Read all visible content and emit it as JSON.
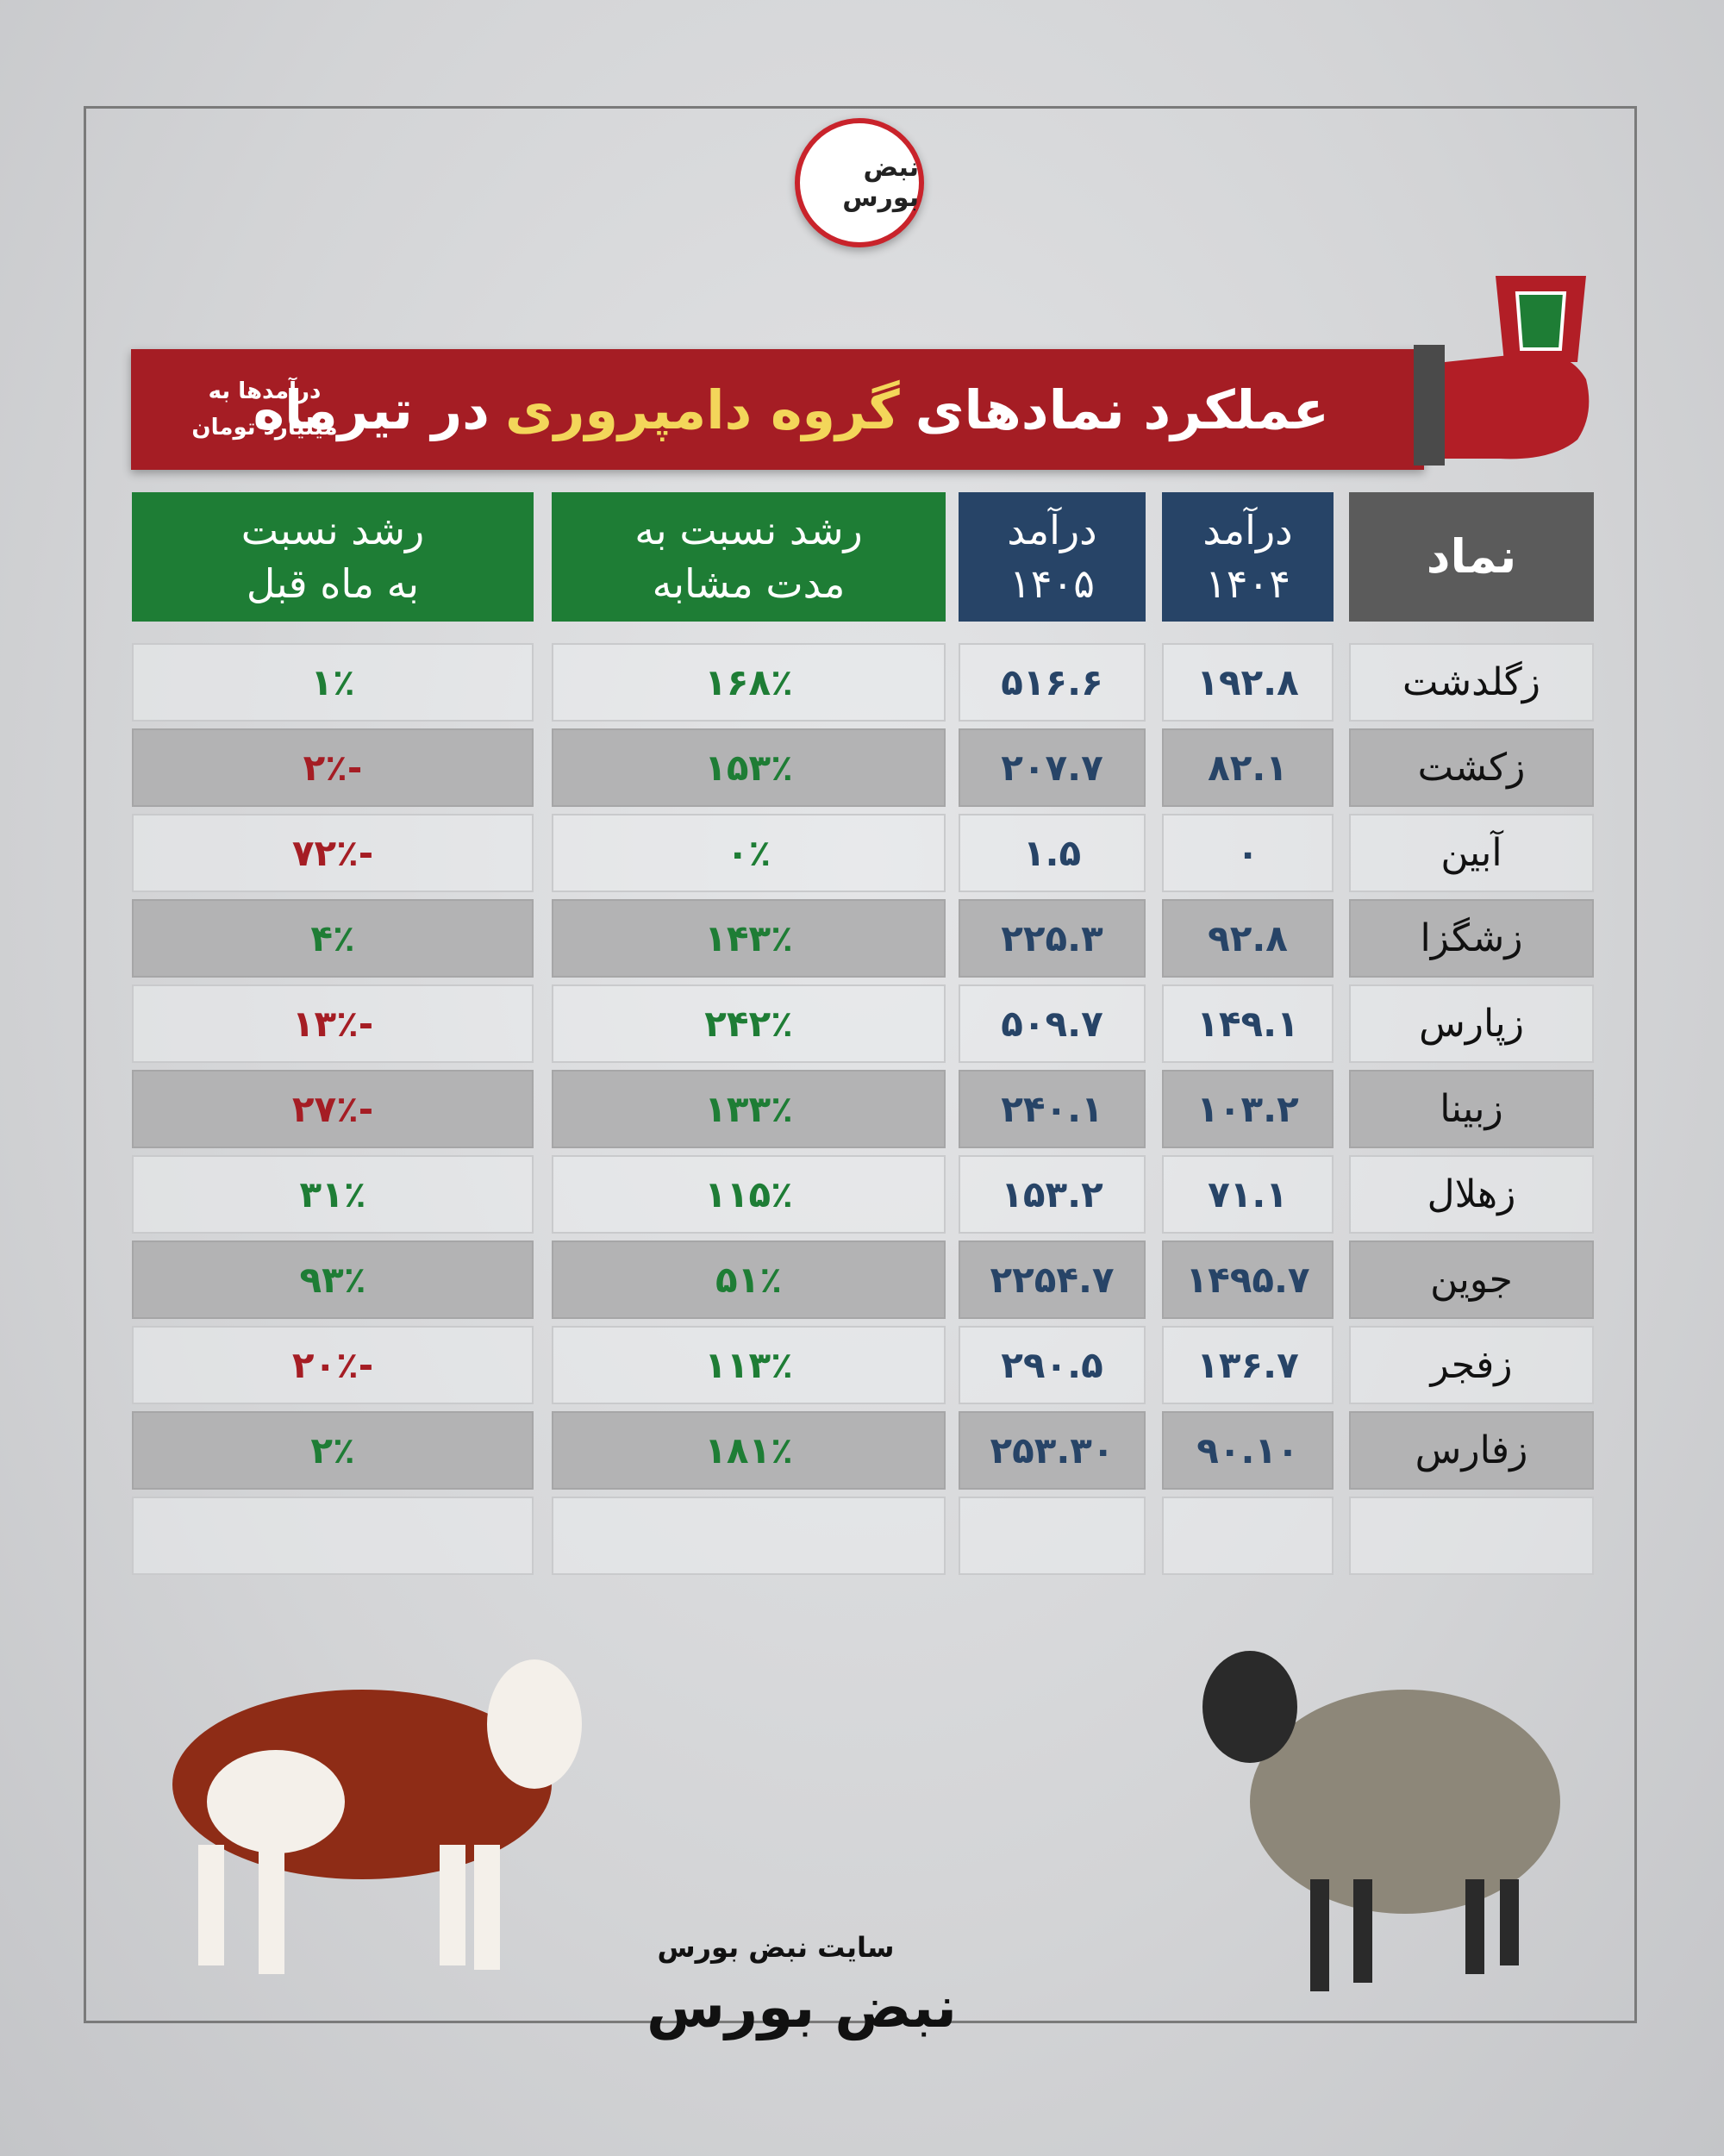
{
  "logo": "نبض بورس",
  "header": {
    "title_start": "عملکرد نمادهای",
    "title_highlight": "گروه دامپروری",
    "title_end": "در تیرماه",
    "note_line1": "درآمدها به",
    "note_line2": "میلیارد تومان"
  },
  "colors": {
    "positive": "#1e7d35",
    "negative": "#a51d24"
  },
  "table": {
    "columns": [
      {
        "lines": [
          "نماد"
        ],
        "color": "#5b5b5b"
      },
      {
        "lines": [
          "درآمد",
          "۱۴۰۴"
        ],
        "color": "#274467"
      },
      {
        "lines": [
          "درآمد",
          "۱۴۰۵"
        ],
        "color": "#274467"
      },
      {
        "lines": [
          "رشد نسبت به",
          "مدت مشابه"
        ],
        "color": "#1e7d35"
      },
      {
        "lines": [
          "رشد نسبت",
          "به ماه قبل"
        ],
        "color": "#1e7d35"
      }
    ],
    "rows": [
      [
        "زگلدشت",
        "۱۹۲.۸",
        "۵۱۶.۶",
        "۱۶۸٪",
        "۱٪"
      ],
      [
        "زکشت",
        "۸۲.۱",
        "۲۰۷.۷",
        "۱۵۳٪",
        "-۲٪"
      ],
      [
        "آبین",
        "۰",
        "۱.۵",
        "۰٪",
        "-۷۲٪"
      ],
      [
        "زشگزا",
        "۹۲.۸",
        "۲۲۵.۳",
        "۱۴۳٪",
        "۴٪"
      ],
      [
        "زپارس",
        "۱۴۹.۱",
        "۵۰۹.۷",
        "۲۴۲٪",
        "-۱۳٪"
      ],
      [
        "زبینا",
        "۱۰۳.۲",
        "۲۴۰.۱",
        "۱۳۳٪",
        "-۲۷٪"
      ],
      [
        "زهلال",
        "۷۱.۱",
        "۱۵۳.۲",
        "۱۱۵٪",
        "۳۱٪"
      ],
      [
        "جوین",
        "۱۴۹۵.۷",
        "۲۲۵۴.۷",
        "۵۱٪",
        "۹۳٪"
      ],
      [
        "زفجر",
        "۱۳۶.۷",
        "۲۹۰.۵",
        "۱۱۳٪",
        "-۲۰٪"
      ],
      [
        "زفارس",
        "۹۰.۱۰",
        "۲۵۳.۳۰",
        "۱۸۱٪",
        "۲٪"
      ]
    ]
  },
  "footer": {
    "site": "سایت نبض بورس",
    "logo": "نبض بورس"
  }
}
